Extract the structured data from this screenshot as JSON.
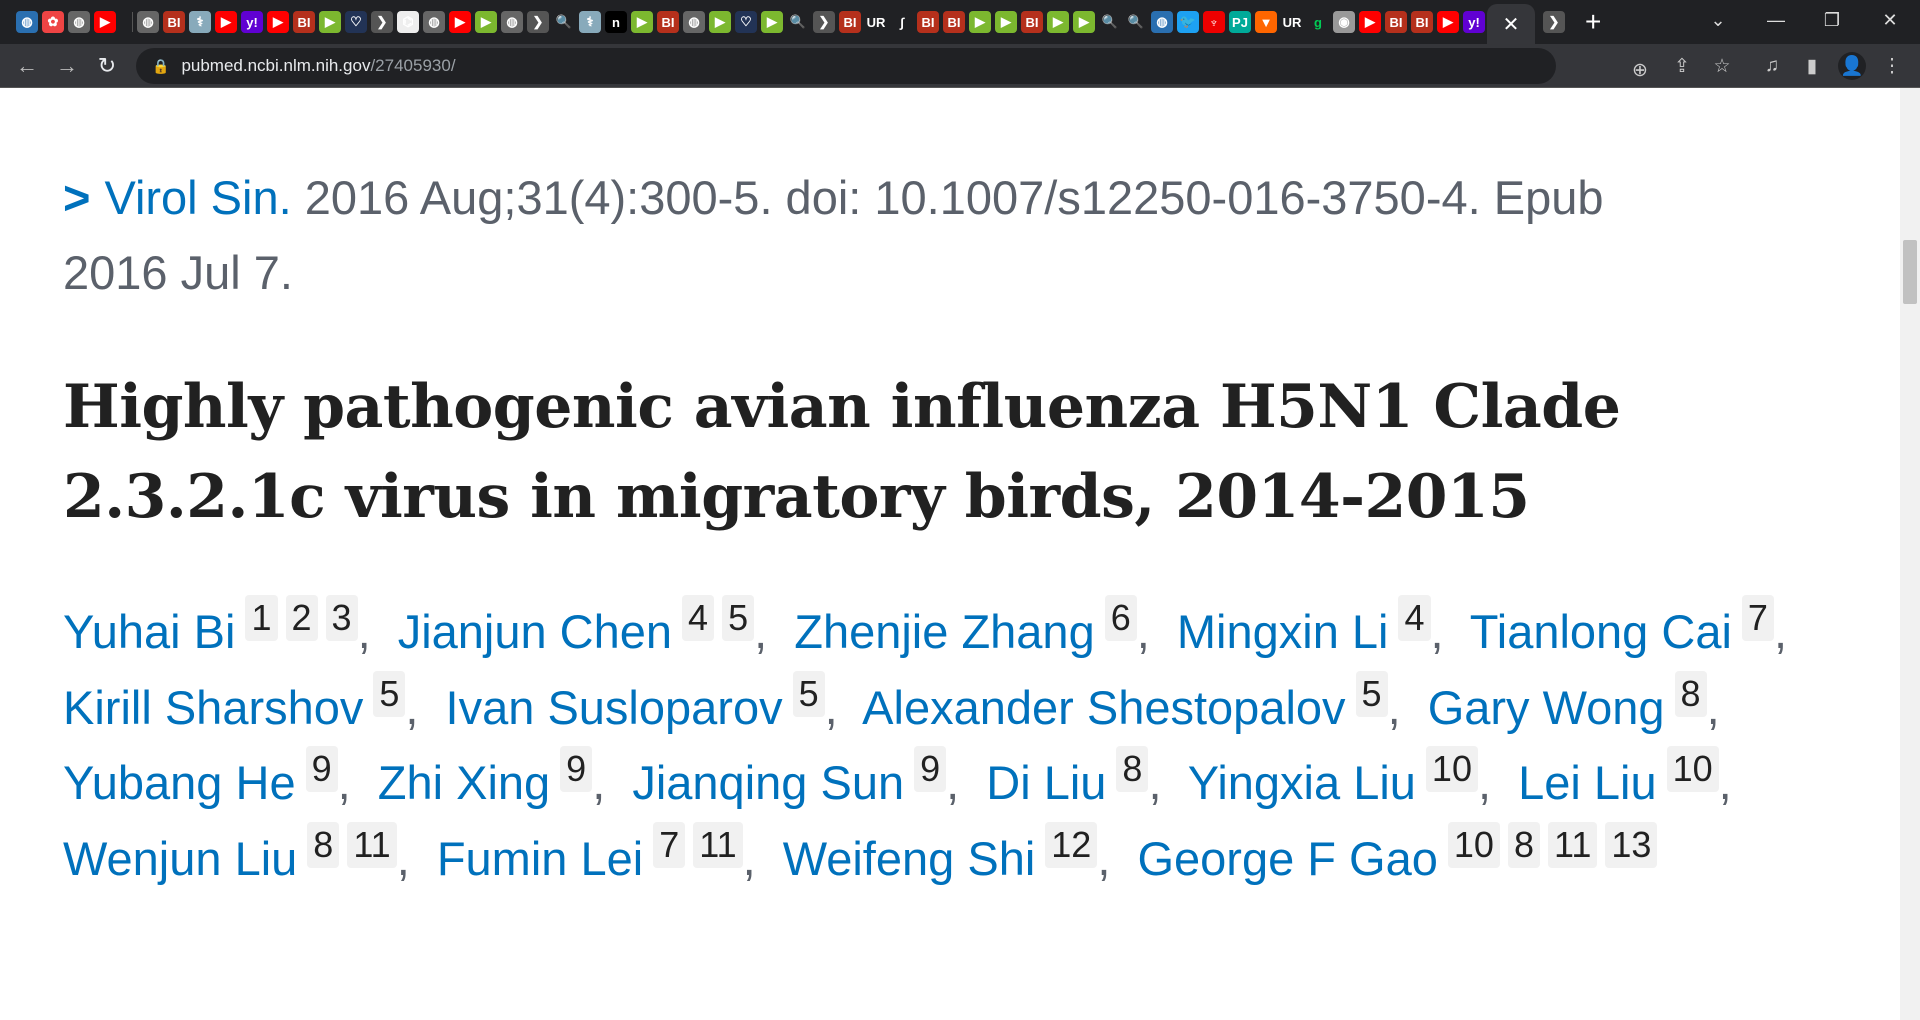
{
  "browser": {
    "tab_favicons": [
      "globe",
      "pinwheel",
      "globe-gray",
      "youtube",
      "|",
      "globe-gray",
      "bi",
      "caduceus",
      "youtube",
      "yahoo",
      "youtube",
      "bi",
      "green-play",
      "shield",
      "gray-arrow",
      "molecule",
      "globe-gray",
      "youtube",
      "green-play",
      "globe-gray",
      "gray-arrow",
      "search",
      "caduceus",
      "n",
      "green-play",
      "bi",
      "globe-gray",
      "green-play",
      "shield",
      "green-play",
      "search",
      "gray-arrow",
      "bi",
      "ur",
      "scribble",
      "bi",
      "bi",
      "green-play",
      "green-play",
      "bi",
      "green-play",
      "green-play",
      "search",
      "search",
      "globe",
      "twitter",
      "torch",
      "pj",
      "bookmark",
      "ur",
      "g",
      "seal",
      "youtube",
      "bi",
      "bi",
      "youtube",
      "yahoo"
    ],
    "active_tab_icon": "close-icon",
    "url_host": "pubmed.ncbi.nlm.nih.gov",
    "url_path": "/27405930/"
  },
  "article": {
    "journal": "Virol Sin.",
    "citation": " 2016 Aug;31(4):300-5. doi: 10.1007/s12250-016-3750-4. Epub 2016 Jul 7.",
    "title": "Highly pathogenic avian influenza H5N1 Clade 2.3.2.1c virus in migratory birds, 2014-2015",
    "authors": [
      {
        "name": "Yuhai Bi",
        "affs": [
          "1",
          "2",
          "3"
        ]
      },
      {
        "name": "Jianjun Chen",
        "affs": [
          "4",
          "5"
        ]
      },
      {
        "name": "Zhenjie Zhang",
        "affs": [
          "6"
        ]
      },
      {
        "name": "Mingxin Li",
        "affs": [
          "4"
        ]
      },
      {
        "name": "Tianlong Cai",
        "affs": [
          "7"
        ]
      },
      {
        "name": "Kirill Sharshov",
        "affs": [
          "5"
        ]
      },
      {
        "name": "Ivan Susloparov",
        "affs": [
          "5"
        ]
      },
      {
        "name": "Alexander Shestopalov",
        "affs": [
          "5"
        ]
      },
      {
        "name": "Gary Wong",
        "affs": [
          "8"
        ]
      },
      {
        "name": "Yubang He",
        "affs": [
          "9"
        ]
      },
      {
        "name": "Zhi Xing",
        "affs": [
          "9"
        ]
      },
      {
        "name": "Jianqing Sun",
        "affs": [
          "9"
        ]
      },
      {
        "name": "Di Liu",
        "affs": [
          "8"
        ]
      },
      {
        "name": "Yingxia Liu",
        "affs": [
          "10"
        ]
      },
      {
        "name": "Lei Liu",
        "affs": [
          "10"
        ]
      },
      {
        "name": "Wenjun Liu",
        "affs": [
          "8",
          "11"
        ]
      },
      {
        "name": "Fumin Lei",
        "affs": [
          "7",
          "11"
        ]
      },
      {
        "name": "Weifeng Shi",
        "affs": [
          "12"
        ]
      },
      {
        "name": "George F Gao",
        "affs": [
          "10",
          "8",
          "11",
          "13"
        ]
      }
    ]
  }
}
